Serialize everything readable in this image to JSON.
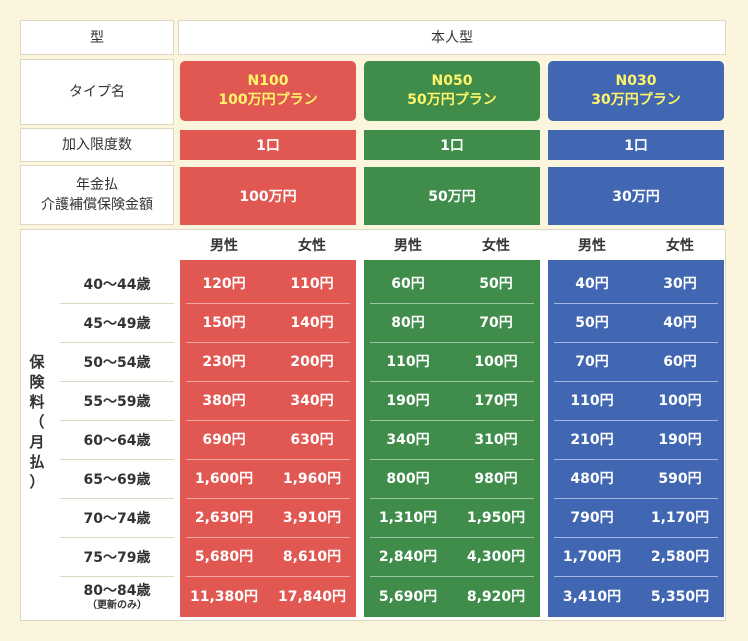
{
  "header": {
    "type_label": "型",
    "type_value": "本人型"
  },
  "rows": {
    "type_name_label": "タイプ名",
    "limit_label": "加入限度数",
    "benefit_label_line1": "年金払",
    "benefit_label_line2": "介護補償保険金額",
    "premium_label_chars": [
      "保",
      "険",
      "料",
      "（",
      "月",
      "払",
      "）"
    ]
  },
  "plans": [
    {
      "code": "N100",
      "name": "100万円プラン",
      "limit": "1口",
      "benefit": "100万円",
      "color": "#e15752"
    },
    {
      "code": "N050",
      "name": "50万円プラン",
      "limit": "1口",
      "benefit": "50万円",
      "color": "#3f8c4b"
    },
    {
      "code": "N030",
      "name": "30万円プラン",
      "limit": "1口",
      "benefit": "30万円",
      "color": "#4167b3"
    }
  ],
  "gender_headers": {
    "male": "男性",
    "female": "女性"
  },
  "age_groups": [
    {
      "label": "40～44歳",
      "note": ""
    },
    {
      "label": "45～49歳",
      "note": ""
    },
    {
      "label": "50～54歳",
      "note": ""
    },
    {
      "label": "55～59歳",
      "note": ""
    },
    {
      "label": "60～64歳",
      "note": ""
    },
    {
      "label": "65～69歳",
      "note": ""
    },
    {
      "label": "70～74歳",
      "note": ""
    },
    {
      "label": "75～79歳",
      "note": ""
    },
    {
      "label": "80～84歳",
      "note": "（更新のみ）"
    }
  ],
  "premiums": {
    "N100": [
      [
        "120円",
        "110円"
      ],
      [
        "150円",
        "140円"
      ],
      [
        "230円",
        "200円"
      ],
      [
        "380円",
        "340円"
      ],
      [
        "690円",
        "630円"
      ],
      [
        "1,600円",
        "1,960円"
      ],
      [
        "2,630円",
        "3,910円"
      ],
      [
        "5,680円",
        "8,610円"
      ],
      [
        "11,380円",
        "17,840円"
      ]
    ],
    "N050": [
      [
        "60円",
        "50円"
      ],
      [
        "80円",
        "70円"
      ],
      [
        "110円",
        "100円"
      ],
      [
        "190円",
        "170円"
      ],
      [
        "340円",
        "310円"
      ],
      [
        "800円",
        "980円"
      ],
      [
        "1,310円",
        "1,950円"
      ],
      [
        "2,840円",
        "4,300円"
      ],
      [
        "5,690円",
        "8,920円"
      ]
    ],
    "N030": [
      [
        "40円",
        "30円"
      ],
      [
        "50円",
        "40円"
      ],
      [
        "70円",
        "60円"
      ],
      [
        "110円",
        "100円"
      ],
      [
        "210円",
        "190円"
      ],
      [
        "480円",
        "590円"
      ],
      [
        "790円",
        "1,170円"
      ],
      [
        "1,700円",
        "2,580円"
      ],
      [
        "3,410円",
        "5,350円"
      ]
    ]
  }
}
